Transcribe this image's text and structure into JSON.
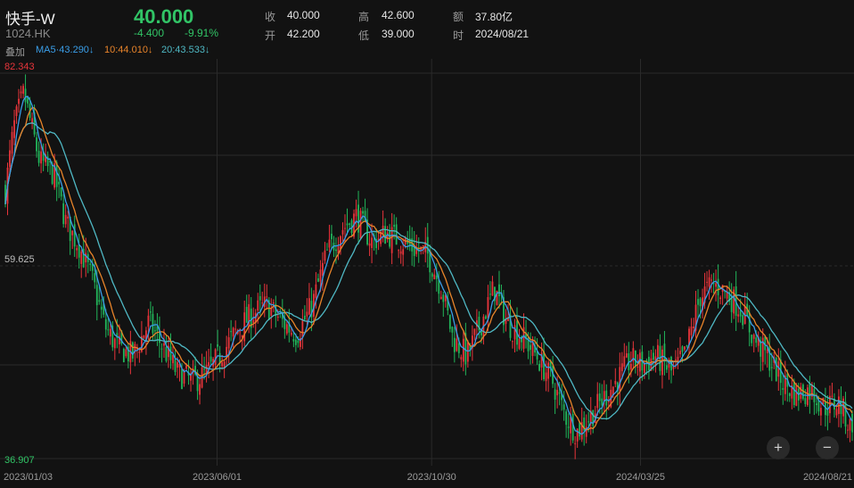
{
  "stock": {
    "name": "快手-W",
    "code": "1024.HK",
    "price": "40.000",
    "change": "-4.400",
    "change_pct": "-9.91%"
  },
  "stats": [
    {
      "label": "收",
      "value": "40.000"
    },
    {
      "label": "开",
      "value": "42.200"
    },
    {
      "label": "高",
      "value": "42.600"
    },
    {
      "label": "低",
      "value": "39.000"
    },
    {
      "label": "额",
      "value": "37.80亿"
    },
    {
      "label": "时",
      "value": "2024/08/21"
    }
  ],
  "ma_row": {
    "overlay_label": "叠加",
    "ma5": "MA5·43.290↓",
    "ma10": "10:44.010↓",
    "ma20": "20:43.533↓"
  },
  "colors": {
    "up": "#e8353b",
    "down": "#22b55a",
    "ma5": "#3a9ee8",
    "ma10": "#e8842a",
    "ma20": "#4fb8c4",
    "grid": "#2a2a2a"
  },
  "controls": {
    "zoom_in": "+",
    "zoom_out": "−"
  },
  "chart_data": {
    "type": "candlestick",
    "y_high_label": "82.343",
    "y_mid_label": "59.625",
    "y_low_label": "36.907",
    "ylim": [
      36.907,
      82.343
    ],
    "x_tick_labels": [
      "2023/01/03",
      "2023/06/01",
      "2023/10/30",
      "2024/03/25",
      "2024/08/21"
    ],
    "x_range": [
      "2023/01/03",
      "2024/08/21"
    ],
    "close_path": [
      [
        "2023/01/03",
        68.5
      ],
      [
        "2023/01/09",
        76.0
      ],
      [
        "2023/01/16",
        80.0
      ],
      [
        "2023/01/27",
        72.0
      ],
      [
        "2023/02/06",
        70.5
      ],
      [
        "2023/02/15",
        64.5
      ],
      [
        "2023/02/24",
        62.0
      ],
      [
        "2023/03/06",
        57.5
      ],
      [
        "2023/03/14",
        52.5
      ],
      [
        "2023/03/23",
        50.0
      ],
      [
        "2023/04/03",
        49.0
      ],
      [
        "2023/04/14",
        53.0
      ],
      [
        "2023/04/24",
        50.0
      ],
      [
        "2023/05/04",
        47.0
      ],
      [
        "2023/05/15",
        46.0
      ],
      [
        "2023/05/25",
        47.0
      ],
      [
        "2023/06/05",
        49.5
      ],
      [
        "2023/06/15",
        52.0
      ],
      [
        "2023/06/26",
        54.0
      ],
      [
        "2023/07/06",
        55.0
      ],
      [
        "2023/07/17",
        53.0
      ],
      [
        "2023/07/27",
        51.5
      ],
      [
        "2023/08/07",
        55.0
      ],
      [
        "2023/08/17",
        61.0
      ],
      [
        "2023/08/28",
        64.0
      ],
      [
        "2023/09/07",
        65.5
      ],
      [
        "2023/09/18",
        62.5
      ],
      [
        "2023/09/28",
        63.5
      ],
      [
        "2023/10/09",
        62.5
      ],
      [
        "2023/10/19",
        61.5
      ],
      [
        "2023/10/27",
        61.0
      ],
      [
        "2023/11/06",
        57.0
      ],
      [
        "2023/11/14",
        51.0
      ],
      [
        "2023/11/24",
        49.0
      ],
      [
        "2023/12/04",
        53.0
      ],
      [
        "2023/12/13",
        57.0
      ],
      [
        "2023/12/22",
        53.0
      ],
      [
        "2024/01/03",
        51.0
      ],
      [
        "2024/01/12",
        49.0
      ],
      [
        "2024/01/23",
        46.0
      ],
      [
        "2024/02/01",
        42.0
      ],
      [
        "2024/02/09",
        40.0
      ],
      [
        "2024/02/19",
        42.0
      ],
      [
        "2024/02/28",
        44.0
      ],
      [
        "2024/03/08",
        46.0
      ],
      [
        "2024/03/18",
        48.5
      ],
      [
        "2024/03/27",
        48.0
      ],
      [
        "2024/04/05",
        49.0
      ],
      [
        "2024/04/16",
        47.0
      ],
      [
        "2024/04/25",
        49.0
      ],
      [
        "2024/05/06",
        56.0
      ],
      [
        "2024/05/15",
        57.5
      ],
      [
        "2024/05/24",
        56.5
      ],
      [
        "2024/06/04",
        54.5
      ],
      [
        "2024/06/13",
        51.0
      ],
      [
        "2024/06/24",
        48.5
      ],
      [
        "2024/07/03",
        46.0
      ],
      [
        "2024/07/12",
        44.5
      ],
      [
        "2024/07/23",
        45.0
      ],
      [
        "2024/08/01",
        43.0
      ],
      [
        "2024/08/12",
        43.5
      ],
      [
        "2024/08/21",
        40.0
      ]
    ]
  }
}
